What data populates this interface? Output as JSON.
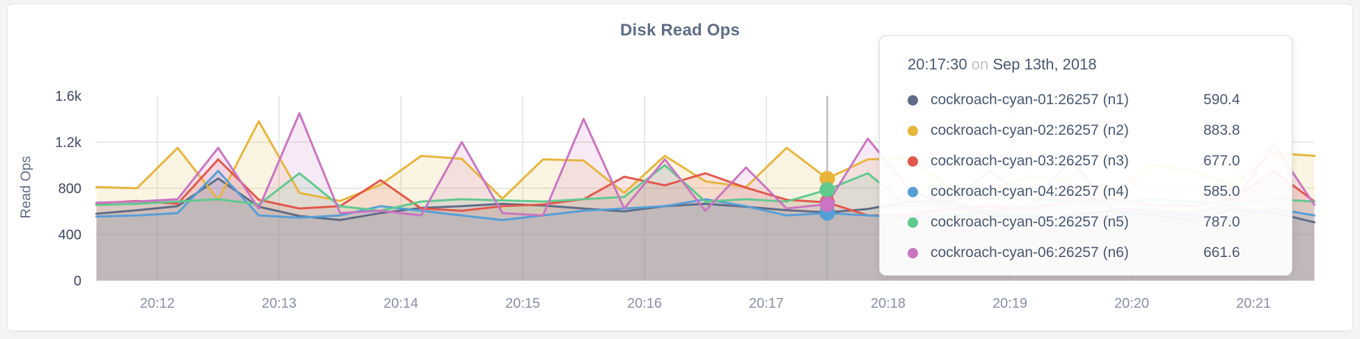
{
  "card": {
    "title": "Disk Read Ops"
  },
  "chart_data": {
    "type": "line",
    "title": "Disk Read Ops",
    "xlabel": "",
    "ylabel": "Read Ops",
    "ylim": [
      0,
      1600
    ],
    "grid": true,
    "legend_position": "tooltip-overlay",
    "y_ticks": [
      {
        "value": 0,
        "label": "0"
      },
      {
        "value": 400,
        "label": "400"
      },
      {
        "value": 800,
        "label": "800"
      },
      {
        "value": 1200,
        "label": "1.2k"
      },
      {
        "value": 1600,
        "label": "1.6k"
      }
    ],
    "x_ticks": [
      {
        "t": 0,
        "label": "20:12"
      },
      {
        "t": 60,
        "label": "20:13"
      },
      {
        "t": 120,
        "label": "20:14"
      },
      {
        "t": 180,
        "label": "20:15"
      },
      {
        "t": 240,
        "label": "20:16"
      },
      {
        "t": 300,
        "label": "20:17"
      },
      {
        "t": 360,
        "label": "20:18"
      },
      {
        "t": 420,
        "label": "20:19"
      },
      {
        "t": 480,
        "label": "20:20"
      },
      {
        "t": 540,
        "label": "20:21"
      }
    ],
    "sampling": {
      "start_offset_seconds": -30,
      "step_seconds": 20,
      "reference_tick": "20:12"
    },
    "series": [
      {
        "id": "n1",
        "name": "cockroach-cyan-01:26257 (n1)",
        "color": "#5f6c87",
        "value_label": "590.4",
        "values": [
          580,
          610,
          645,
          885,
          640,
          560,
          525,
          585,
          630,
          645,
          665,
          650,
          625,
          600,
          645,
          665,
          640,
          610,
          590.4,
          620,
          685,
          690,
          565,
          535,
          565,
          605,
          565,
          525,
          620,
          590,
          505
        ]
      },
      {
        "id": "n2",
        "name": "cockroach-cyan-02:26257 (n2)",
        "color": "#e7b53c",
        "value_label": "883.8",
        "values": [
          810,
          800,
          1150,
          700,
          1380,
          760,
          690,
          830,
          1080,
          1055,
          710,
          1050,
          1040,
          760,
          1080,
          860,
          810,
          1150,
          883.8,
          1050,
          1060,
          810,
          760,
          905,
          855,
          730,
          1005,
          950,
          825,
          1105,
          1080
        ]
      },
      {
        "id": "n3",
        "name": "cockroach-cyan-03:26257 (n3)",
        "color": "#e2574c",
        "value_label": "677.0",
        "values": [
          670,
          690,
          665,
          1050,
          700,
          625,
          645,
          870,
          625,
          605,
          645,
          660,
          705,
          900,
          825,
          930,
          805,
          700,
          677,
          565,
          565,
          625,
          645,
          625,
          685,
          705,
          655,
          645,
          705,
          950,
          685
        ]
      },
      {
        "id": "n4",
        "name": "cockroach-cyan-04:26257 (n4)",
        "color": "#559fd7",
        "value_label": "585.0",
        "values": [
          555,
          565,
          585,
          950,
          565,
          545,
          565,
          645,
          605,
          565,
          525,
          565,
          605,
          625,
          645,
          705,
          645,
          565,
          585,
          565,
          545,
          565,
          585,
          565,
          545,
          565,
          585,
          565,
          545,
          625,
          565
        ]
      },
      {
        "id": "n5",
        "name": "cockroach-cyan-05:26257 (n5)",
        "color": "#60c98e",
        "value_label": "787.0",
        "values": [
          655,
          665,
          685,
          705,
          660,
          930,
          645,
          605,
          685,
          705,
          695,
          685,
          705,
          725,
          1000,
          685,
          705,
          685,
          787,
          930,
          645,
          665,
          950,
          705,
          685,
          665,
          705,
          685,
          665,
          705,
          685
        ]
      },
      {
        "id": "n6",
        "name": "cockroach-cyan-06:26257 (n6)",
        "color": "#ca74c2",
        "value_label": "661.6",
        "values": [
          675,
          685,
          705,
          1150,
          625,
          1450,
          585,
          605,
          565,
          1200,
          585,
          565,
          1400,
          625,
          1050,
          605,
          980,
          625,
          661.6,
          1230,
          805,
          625,
          605,
          645,
          1050,
          625,
          605,
          585,
          665,
          1180,
          655
        ]
      }
    ],
    "hover": {
      "index": 18,
      "time": "20:17:30",
      "preposition": "on",
      "date": "Sep 13th, 2018"
    }
  }
}
